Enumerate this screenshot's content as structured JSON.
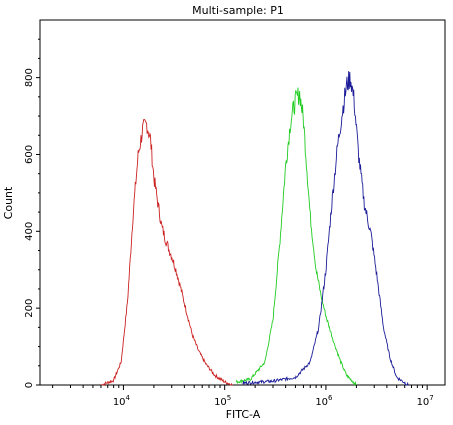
{
  "chart_data": {
    "type": "area",
    "title": "Multi-sample: P1",
    "xlabel": "FITC-A",
    "ylabel": "Count",
    "x_scale": "log",
    "xlim": [
      1500,
      15000000
    ],
    "ylim": [
      0,
      950
    ],
    "grid": false,
    "legend": "none",
    "y_ticks": [
      0,
      200,
      400,
      600,
      800
    ],
    "x_ticks": [
      {
        "value": 10000,
        "base": "10",
        "exp": "4"
      },
      {
        "value": 100000,
        "base": "10",
        "exp": "5"
      },
      {
        "value": 1000000,
        "base": "10",
        "exp": "6"
      },
      {
        "value": 10000000,
        "base": "10",
        "exp": "7"
      }
    ],
    "series": [
      {
        "color": "#cc2222",
        "x": [
          6000,
          8000,
          9500,
          11000,
          12500,
          14000,
          15500,
          17000,
          18500,
          20000,
          22000,
          24000,
          26000,
          28000,
          30000,
          33000,
          37000,
          42000,
          48000,
          55000,
          65000,
          80000,
          100000,
          120000
        ],
        "y": [
          0,
          12,
          60,
          220,
          450,
          600,
          665,
          680,
          640,
          540,
          470,
          410,
          380,
          355,
          335,
          300,
          250,
          190,
          130,
          90,
          55,
          25,
          8,
          0
        ]
      },
      {
        "color": "#22cc22",
        "x": [
          130000,
          180000,
          250000,
          300000,
          350000,
          400000,
          450000,
          500000,
          550000,
          600000,
          650000,
          700000,
          800000,
          900000,
          1000000,
          1200000,
          1400000,
          1600000,
          2000000
        ],
        "y": [
          8,
          15,
          60,
          170,
          370,
          570,
          690,
          740,
          760,
          690,
          560,
          440,
          300,
          230,
          180,
          110,
          60,
          25,
          0
        ]
      },
      {
        "color": "#1c1c99",
        "x": [
          150000,
          300000,
          500000,
          700000,
          850000,
          1000000,
          1150000,
          1300000,
          1450000,
          1600000,
          1750000,
          1900000,
          2100000,
          2400000,
          2800000,
          3200000,
          3700000,
          4300000,
          5000000,
          6500000
        ],
        "y": [
          5,
          10,
          20,
          60,
          150,
          300,
          480,
          620,
          710,
          780,
          800,
          740,
          600,
          470,
          390,
          280,
          150,
          70,
          20,
          0
        ]
      }
    ]
  }
}
